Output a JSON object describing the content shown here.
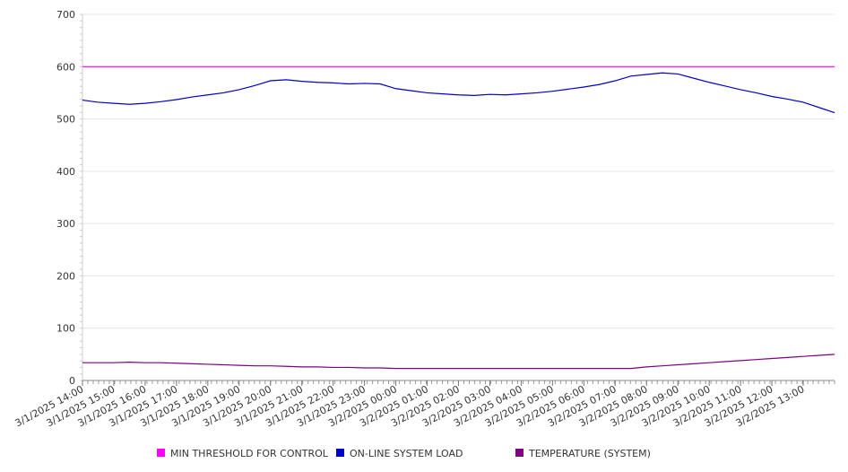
{
  "chart_data": {
    "type": "line",
    "title": "",
    "xlabel": "",
    "ylabel": "",
    "ylim": [
      0,
      700
    ],
    "yticks": [
      0,
      100,
      200,
      300,
      400,
      500,
      600,
      700
    ],
    "grid": true,
    "legend_position": "bottom",
    "x_tick_labels": [
      "3/1/2025 14:00",
      "3/1/2025 15:00",
      "3/1/2025 16:00",
      "3/1/2025 17:00",
      "3/1/2025 18:00",
      "3/1/2025 19:00",
      "3/1/2025 20:00",
      "3/1/2025 21:00",
      "3/1/2025 22:00",
      "3/1/2025 23:00",
      "3/2/2025 00:00",
      "3/2/2025 01:00",
      "3/2/2025 02:00",
      "3/2/2025 03:00",
      "3/2/2025 04:00",
      "3/2/2025 05:00",
      "3/2/2025 06:00",
      "3/2/2025 07:00",
      "3/2/2025 08:00",
      "3/2/2025 09:00",
      "3/2/2025 10:00",
      "3/2/2025 11:00",
      "3/2/2025 12:00",
      "3/2/2025 13:00"
    ],
    "x": [
      "3/1/2025 14:00",
      "3/1/2025 14:30",
      "3/1/2025 15:00",
      "3/1/2025 15:30",
      "3/1/2025 16:00",
      "3/1/2025 16:30",
      "3/1/2025 17:00",
      "3/1/2025 17:30",
      "3/1/2025 18:00",
      "3/1/2025 18:30",
      "3/1/2025 19:00",
      "3/1/2025 19:30",
      "3/1/2025 20:00",
      "3/1/2025 20:30",
      "3/1/2025 21:00",
      "3/1/2025 21:30",
      "3/1/2025 22:00",
      "3/1/2025 22:30",
      "3/1/2025 23:00",
      "3/1/2025 23:30",
      "3/2/2025 00:00",
      "3/2/2025 00:30",
      "3/2/2025 01:00",
      "3/2/2025 01:30",
      "3/2/2025 02:00",
      "3/2/2025 02:30",
      "3/2/2025 03:00",
      "3/2/2025 03:30",
      "3/2/2025 04:00",
      "3/2/2025 04:30",
      "3/2/2025 05:00",
      "3/2/2025 05:30",
      "3/2/2025 06:00",
      "3/2/2025 06:30",
      "3/2/2025 07:00",
      "3/2/2025 07:30",
      "3/2/2025 08:00",
      "3/2/2025 08:30",
      "3/2/2025 09:00",
      "3/2/2025 09:30",
      "3/2/2025 10:00",
      "3/2/2025 10:30",
      "3/2/2025 11:00",
      "3/2/2025 11:30",
      "3/2/2025 12:00",
      "3/2/2025 12:30",
      "3/2/2025 13:00",
      "3/2/2025 13:30",
      "3/2/2025 14:00"
    ],
    "series": [
      {
        "name": "MIN THRESHOLD FOR CONTROL",
        "color": "#ff00ff",
        "values": [
          600,
          600,
          600,
          600,
          600,
          600,
          600,
          600,
          600,
          600,
          600,
          600,
          600,
          600,
          600,
          600,
          600,
          600,
          600,
          600,
          600,
          600,
          600,
          600,
          600,
          600,
          600,
          600,
          600,
          600,
          600,
          600,
          600,
          600,
          600,
          600,
          600,
          600,
          600,
          600,
          600,
          600,
          600,
          600,
          600,
          600,
          600,
          600,
          600
        ]
      },
      {
        "name": "ON-LINE SYSTEM LOAD",
        "color": "#0000cc",
        "values": [
          536,
          532,
          530,
          528,
          530,
          533,
          537,
          542,
          546,
          550,
          556,
          564,
          573,
          575,
          572,
          570,
          569,
          567,
          568,
          567,
          558,
          554,
          550,
          548,
          546,
          545,
          547,
          546,
          548,
          550,
          553,
          557,
          561,
          566,
          573,
          582,
          585,
          588,
          586,
          578,
          570,
          563,
          556,
          550,
          543,
          538,
          532,
          522,
          512
        ]
      },
      {
        "name": "TEMPERATURE (SYSTEM)",
        "color": "#800080",
        "values": [
          34,
          34,
          34,
          35,
          34,
          34,
          33,
          32,
          31,
          30,
          29,
          28,
          28,
          27,
          26,
          26,
          25,
          25,
          24,
          24,
          23,
          23,
          23,
          23,
          23,
          23,
          23,
          23,
          23,
          23,
          23,
          23,
          23,
          23,
          23,
          23,
          26,
          28,
          30,
          32,
          34,
          36,
          38,
          40,
          42,
          44,
          46,
          48,
          50
        ]
      }
    ]
  }
}
